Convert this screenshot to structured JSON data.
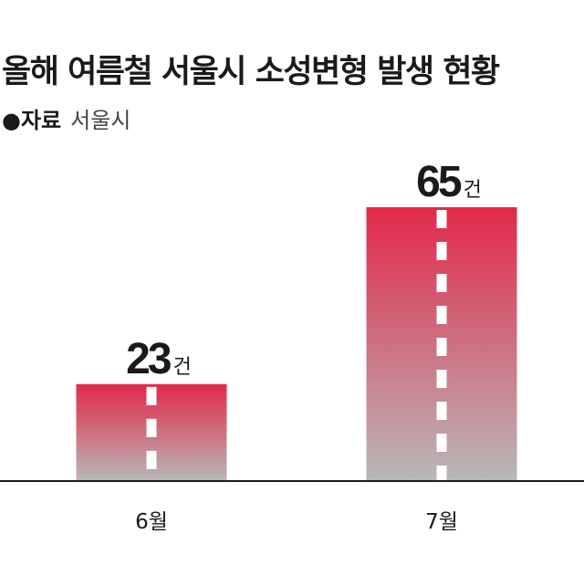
{
  "title": "올해 여름철 서울시 소성변형 발생 현황",
  "source": {
    "bullet": "●",
    "label": "자료",
    "value": "서울시"
  },
  "colors": {
    "bar_top": "#e3294a",
    "bar_bottom": "#b8b8b8",
    "axis": "#1a1a1a",
    "dash": "#ffffff"
  },
  "chart_data": {
    "type": "bar",
    "categories": [
      "6월",
      "7월"
    ],
    "values": [
      23,
      65
    ],
    "unit": "건",
    "ylim": [
      0,
      70
    ],
    "grid": false,
    "legend": "none"
  }
}
